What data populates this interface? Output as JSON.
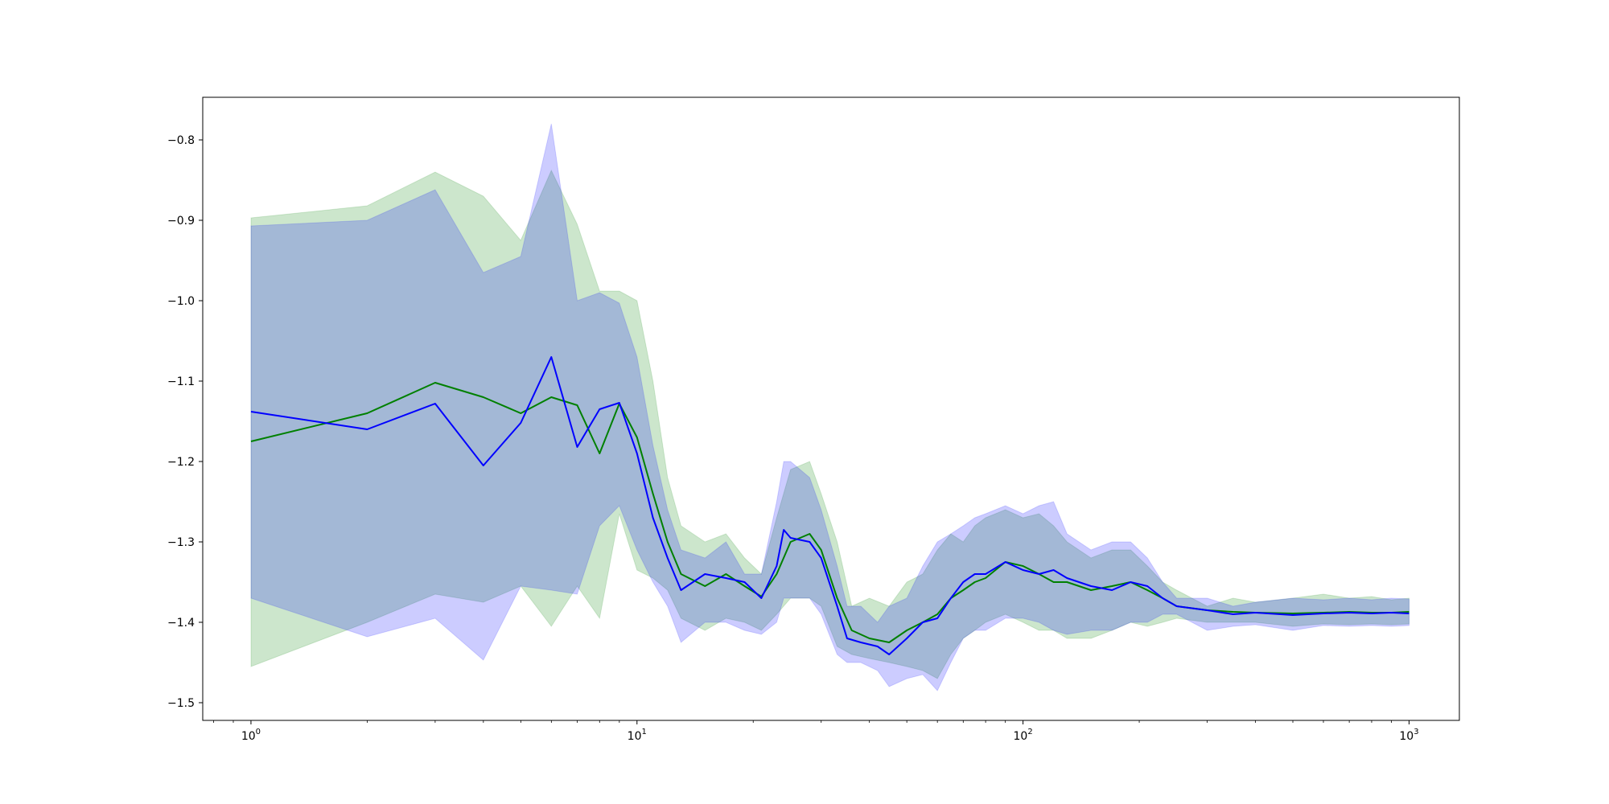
{
  "chart_data": {
    "type": "line",
    "title": "",
    "xlabel": "",
    "ylabel": "",
    "xscale": "log",
    "xlim": [
      0.75,
      1350
    ],
    "ylim": [
      -1.522,
      -0.747
    ],
    "grid": false,
    "x_ticks": [
      {
        "value": 1,
        "base": "10",
        "exp": "0"
      },
      {
        "value": 10,
        "base": "10",
        "exp": "1"
      },
      {
        "value": 100,
        "base": "10",
        "exp": "2"
      },
      {
        "value": 1000,
        "base": "10",
        "exp": "3"
      }
    ],
    "y_ticks": [
      {
        "value": -0.8,
        "label": "−0.8"
      },
      {
        "value": -0.9,
        "label": "−0.9"
      },
      {
        "value": -1.0,
        "label": "−1.0"
      },
      {
        "value": -1.1,
        "label": "−1.1"
      },
      {
        "value": -1.2,
        "label": "−1.2"
      },
      {
        "value": -1.3,
        "label": "−1.3"
      },
      {
        "value": -1.4,
        "label": "−1.4"
      },
      {
        "value": -1.5,
        "label": "−1.5"
      }
    ],
    "series": [
      {
        "color": "#008000",
        "band_color": "#008000",
        "band_opacity": 0.2,
        "x": [
          1,
          2,
          3,
          4,
          5,
          6,
          7,
          8,
          9,
          10,
          11,
          12,
          13,
          15,
          17,
          19,
          21,
          23,
          25,
          28,
          30,
          33,
          36,
          40,
          45,
          50,
          55,
          60,
          65,
          70,
          75,
          80,
          90,
          100,
          110,
          120,
          130,
          150,
          170,
          190,
          210,
          230,
          250,
          300,
          350,
          400,
          500,
          600,
          700,
          800,
          900,
          1000
        ],
        "y": [
          -1.175,
          -1.14,
          -1.102,
          -1.12,
          -1.14,
          -1.12,
          -1.13,
          -1.19,
          -1.128,
          -1.17,
          -1.24,
          -1.3,
          -1.34,
          -1.355,
          -1.34,
          -1.355,
          -1.368,
          -1.34,
          -1.3,
          -1.29,
          -1.31,
          -1.37,
          -1.41,
          -1.42,
          -1.425,
          -1.41,
          -1.4,
          -1.39,
          -1.37,
          -1.36,
          -1.35,
          -1.345,
          -1.325,
          -1.33,
          -1.34,
          -1.35,
          -1.35,
          -1.36,
          -1.355,
          -1.35,
          -1.36,
          -1.37,
          -1.38,
          -1.385,
          -1.387,
          -1.388,
          -1.389,
          -1.388,
          -1.387,
          -1.388,
          -1.388,
          -1.387
        ],
        "upper": [
          -0.897,
          -0.882,
          -0.84,
          -0.87,
          -0.925,
          -0.838,
          -0.905,
          -0.988,
          -0.988,
          -1.0,
          -1.1,
          -1.22,
          -1.28,
          -1.3,
          -1.29,
          -1.32,
          -1.34,
          -1.27,
          -1.21,
          -1.2,
          -1.24,
          -1.3,
          -1.38,
          -1.37,
          -1.38,
          -1.35,
          -1.34,
          -1.31,
          -1.29,
          -1.3,
          -1.28,
          -1.27,
          -1.26,
          -1.27,
          -1.265,
          -1.28,
          -1.3,
          -1.32,
          -1.31,
          -1.31,
          -1.33,
          -1.35,
          -1.36,
          -1.38,
          -1.37,
          -1.375,
          -1.37,
          -1.365,
          -1.37,
          -1.368,
          -1.372,
          -1.37
        ],
        "lower": [
          -1.455,
          -1.4,
          -1.365,
          -1.375,
          -1.355,
          -1.405,
          -1.355,
          -1.395,
          -1.265,
          -1.335,
          -1.345,
          -1.36,
          -1.395,
          -1.41,
          -1.395,
          -1.4,
          -1.41,
          -1.39,
          -1.37,
          -1.37,
          -1.38,
          -1.43,
          -1.44,
          -1.445,
          -1.45,
          -1.455,
          -1.46,
          -1.47,
          -1.44,
          -1.42,
          -1.41,
          -1.4,
          -1.39,
          -1.4,
          -1.41,
          -1.41,
          -1.42,
          -1.42,
          -1.41,
          -1.4,
          -1.405,
          -1.4,
          -1.395,
          -1.4,
          -1.4,
          -1.4,
          -1.405,
          -1.402,
          -1.403,
          -1.402,
          -1.403,
          -1.402
        ]
      },
      {
        "color": "#0000ff",
        "band_color": "#0000ff",
        "band_opacity": 0.2,
        "x": [
          1,
          2,
          3,
          4,
          5,
          6,
          7,
          8,
          9,
          10,
          11,
          12,
          13,
          15,
          17,
          19,
          21,
          23,
          24,
          25,
          28,
          30,
          33,
          35,
          38,
          42,
          45,
          50,
          55,
          60,
          65,
          70,
          75,
          80,
          90,
          100,
          110,
          120,
          130,
          150,
          170,
          190,
          210,
          230,
          250,
          300,
          350,
          400,
          500,
          600,
          700,
          800,
          900,
          1000
        ],
        "y": [
          -1.138,
          -1.16,
          -1.128,
          -1.205,
          -1.152,
          -1.07,
          -1.182,
          -1.135,
          -1.127,
          -1.19,
          -1.27,
          -1.32,
          -1.36,
          -1.34,
          -1.345,
          -1.35,
          -1.37,
          -1.33,
          -1.285,
          -1.295,
          -1.3,
          -1.32,
          -1.38,
          -1.42,
          -1.425,
          -1.43,
          -1.44,
          -1.42,
          -1.4,
          -1.395,
          -1.37,
          -1.35,
          -1.34,
          -1.34,
          -1.325,
          -1.335,
          -1.34,
          -1.335,
          -1.345,
          -1.355,
          -1.36,
          -1.35,
          -1.355,
          -1.37,
          -1.38,
          -1.385,
          -1.39,
          -1.388,
          -1.391,
          -1.389,
          -1.388,
          -1.389,
          -1.388,
          -1.389
        ],
        "upper": [
          -0.907,
          -0.9,
          -0.862,
          -0.965,
          -0.945,
          -0.78,
          -1.0,
          -0.99,
          -1.003,
          -1.07,
          -1.18,
          -1.26,
          -1.31,
          -1.32,
          -1.3,
          -1.34,
          -1.34,
          -1.25,
          -1.2,
          -1.2,
          -1.22,
          -1.26,
          -1.33,
          -1.38,
          -1.38,
          -1.4,
          -1.38,
          -1.37,
          -1.33,
          -1.3,
          -1.29,
          -1.28,
          -1.27,
          -1.265,
          -1.255,
          -1.265,
          -1.255,
          -1.25,
          -1.29,
          -1.31,
          -1.3,
          -1.3,
          -1.32,
          -1.35,
          -1.37,
          -1.37,
          -1.38,
          -1.375,
          -1.37,
          -1.372,
          -1.37,
          -1.372,
          -1.37,
          -1.371
        ],
        "lower": [
          -1.37,
          -1.418,
          -1.395,
          -1.447,
          -1.355,
          -1.36,
          -1.365,
          -1.28,
          -1.255,
          -1.31,
          -1.35,
          -1.38,
          -1.425,
          -1.4,
          -1.4,
          -1.41,
          -1.415,
          -1.4,
          -1.37,
          -1.37,
          -1.37,
          -1.39,
          -1.44,
          -1.45,
          -1.45,
          -1.46,
          -1.48,
          -1.47,
          -1.465,
          -1.485,
          -1.45,
          -1.42,
          -1.41,
          -1.41,
          -1.395,
          -1.395,
          -1.4,
          -1.41,
          -1.415,
          -1.41,
          -1.41,
          -1.4,
          -1.4,
          -1.39,
          -1.39,
          -1.41,
          -1.405,
          -1.403,
          -1.41,
          -1.404,
          -1.405,
          -1.404,
          -1.405,
          -1.404
        ]
      }
    ]
  }
}
